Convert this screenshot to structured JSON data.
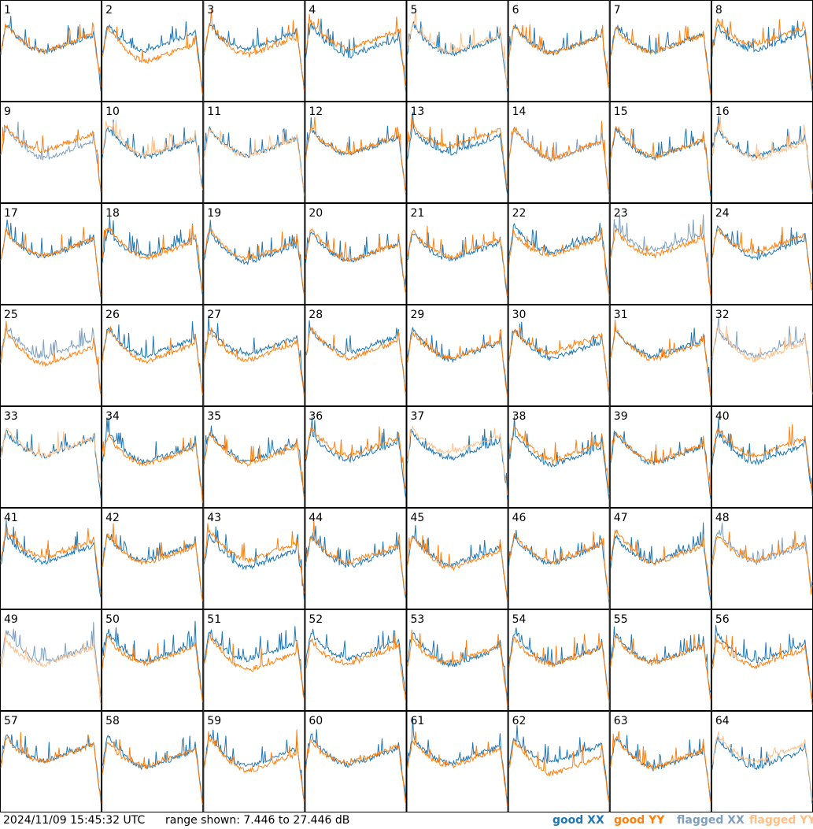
{
  "chart_data": {
    "type": "line",
    "layout": "small-multiples",
    "panels": [
      {
        "label": "1",
        "xx": "good",
        "yy": "good"
      },
      {
        "label": "2",
        "xx": "good",
        "yy": "good"
      },
      {
        "label": "3",
        "xx": "good",
        "yy": "good"
      },
      {
        "label": "4",
        "xx": "good",
        "yy": "good"
      },
      {
        "label": "5",
        "xx": "good",
        "yy": "flagged"
      },
      {
        "label": "6",
        "xx": "good",
        "yy": "good"
      },
      {
        "label": "7",
        "xx": "good",
        "yy": "good"
      },
      {
        "label": "8",
        "xx": "good",
        "yy": "good"
      },
      {
        "label": "9",
        "xx": "flagged",
        "yy": "good"
      },
      {
        "label": "10",
        "xx": "good",
        "yy": "flagged"
      },
      {
        "label": "11",
        "xx": "good",
        "yy": "flagged"
      },
      {
        "label": "12",
        "xx": "good",
        "yy": "good"
      },
      {
        "label": "13",
        "xx": "good",
        "yy": "good"
      },
      {
        "label": "14",
        "xx": "flagged",
        "yy": "good"
      },
      {
        "label": "15",
        "xx": "good",
        "yy": "good"
      },
      {
        "label": "16",
        "xx": "good",
        "yy": "flagged"
      },
      {
        "label": "17",
        "xx": "good",
        "yy": "good"
      },
      {
        "label": "18",
        "xx": "good",
        "yy": "good"
      },
      {
        "label": "19",
        "xx": "good",
        "yy": "good"
      },
      {
        "label": "20",
        "xx": "good",
        "yy": "good"
      },
      {
        "label": "21",
        "xx": "good",
        "yy": "good"
      },
      {
        "label": "22",
        "xx": "good",
        "yy": "good"
      },
      {
        "label": "23",
        "xx": "flagged",
        "yy": "good"
      },
      {
        "label": "24",
        "xx": "good",
        "yy": "good"
      },
      {
        "label": "25",
        "xx": "flagged",
        "yy": "good"
      },
      {
        "label": "26",
        "xx": "good",
        "yy": "good"
      },
      {
        "label": "27",
        "xx": "good",
        "yy": "good"
      },
      {
        "label": "28",
        "xx": "good",
        "yy": "good"
      },
      {
        "label": "29",
        "xx": "good",
        "yy": "good"
      },
      {
        "label": "30",
        "xx": "good",
        "yy": "good"
      },
      {
        "label": "31",
        "xx": "good",
        "yy": "good"
      },
      {
        "label": "32",
        "xx": "flagged",
        "yy": "flagged"
      },
      {
        "label": "33",
        "xx": "good",
        "yy": "flagged"
      },
      {
        "label": "34",
        "xx": "good",
        "yy": "good"
      },
      {
        "label": "35",
        "xx": "good",
        "yy": "good"
      },
      {
        "label": "36",
        "xx": "good",
        "yy": "good"
      },
      {
        "label": "37",
        "xx": "good",
        "yy": "flagged"
      },
      {
        "label": "38",
        "xx": "good",
        "yy": "good"
      },
      {
        "label": "39",
        "xx": "good",
        "yy": "good"
      },
      {
        "label": "40",
        "xx": "good",
        "yy": "good"
      },
      {
        "label": "41",
        "xx": "good",
        "yy": "good"
      },
      {
        "label": "42",
        "xx": "good",
        "yy": "good"
      },
      {
        "label": "43",
        "xx": "good",
        "yy": "good"
      },
      {
        "label": "44",
        "xx": "good",
        "yy": "good"
      },
      {
        "label": "45",
        "xx": "good",
        "yy": "good"
      },
      {
        "label": "46",
        "xx": "good",
        "yy": "good"
      },
      {
        "label": "47",
        "xx": "good",
        "yy": "good"
      },
      {
        "label": "48",
        "xx": "flagged",
        "yy": "good"
      },
      {
        "label": "49",
        "xx": "flagged",
        "yy": "flagged"
      },
      {
        "label": "50",
        "xx": "good",
        "yy": "good"
      },
      {
        "label": "51",
        "xx": "good",
        "yy": "good"
      },
      {
        "label": "52",
        "xx": "good",
        "yy": "good"
      },
      {
        "label": "53",
        "xx": "good",
        "yy": "good"
      },
      {
        "label": "54",
        "xx": "good",
        "yy": "good"
      },
      {
        "label": "55",
        "xx": "good",
        "yy": "good"
      },
      {
        "label": "56",
        "xx": "good",
        "yy": "good"
      },
      {
        "label": "57",
        "xx": "good",
        "yy": "good"
      },
      {
        "label": "58",
        "xx": "good",
        "yy": "good"
      },
      {
        "label": "59",
        "xx": "good",
        "yy": "good"
      },
      {
        "label": "60",
        "xx": "good",
        "yy": "good"
      },
      {
        "label": "61",
        "xx": "good",
        "yy": "good"
      },
      {
        "label": "62",
        "xx": "good",
        "yy": "good"
      },
      {
        "label": "63",
        "xx": "good",
        "yy": "good"
      },
      {
        "label": "64",
        "xx": "good",
        "yy": "flagged"
      }
    ],
    "ylim": [
      7.446,
      27.446
    ],
    "legend": [
      {
        "label": "good XX",
        "color": "#1f77b4"
      },
      {
        "label": "good YY",
        "color": "#ff7f0e"
      },
      {
        "label": "flagged XX",
        "color": "#7f9fbf"
      },
      {
        "label": "flagged YY",
        "color": "#ffbf87"
      }
    ]
  },
  "footer": {
    "timestamp": "2024/11/09 15:45:32 UTC",
    "range_text": "range shown: 7.446 to 27.446 dB"
  }
}
